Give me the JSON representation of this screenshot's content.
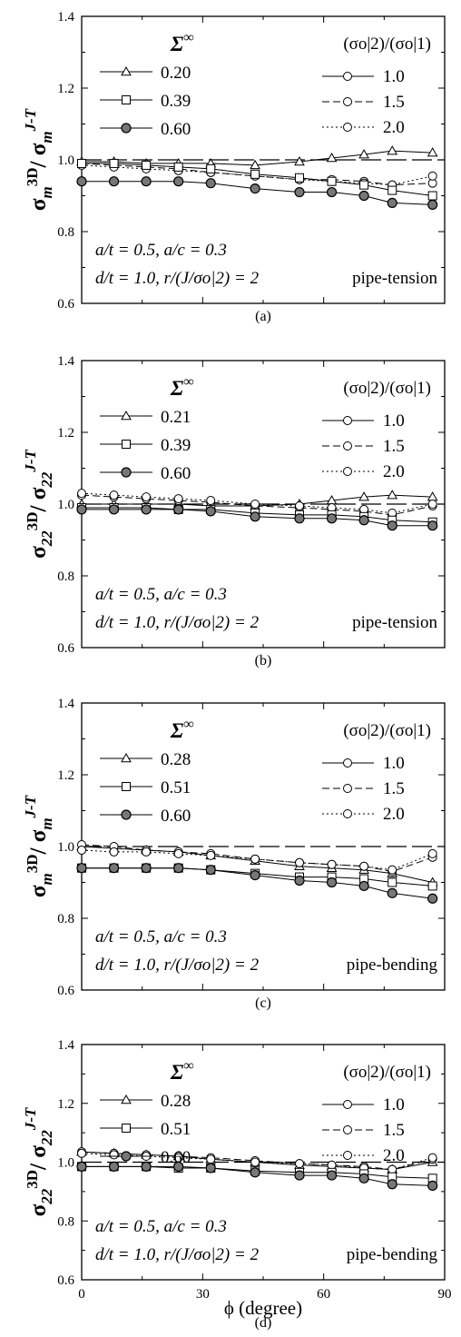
{
  "chart_data": [
    {
      "type": "line",
      "panel_label": "(a)",
      "y_label": {
        "base": "σ",
        "sub": "m",
        "sup_left": "3D",
        "sep": "/ ",
        "base2": "σ",
        "sub2": "m",
        "sup2": "J-T"
      },
      "xlabel": "",
      "xlim": [
        0,
        90
      ],
      "ylim": [
        0.6,
        1.4
      ],
      "x_ticks": [
        "0",
        "30",
        "60",
        "90"
      ],
      "y_ticks": [
        "0.6",
        "0.8",
        "1.0",
        "1.2",
        "1.4"
      ],
      "sigma_header": {
        "main": "Σ",
        "sup": "∞"
      },
      "ratio_header": "(σo|2)/(σo|1)",
      "sigma_levels": [
        {
          "name": "0.20",
          "marker": "triangle"
        },
        {
          "name": "0.39",
          "marker": "square"
        },
        {
          "name": "0.60",
          "marker": "filled-circle"
        }
      ],
      "ratio_styles": [
        {
          "name": "1.0",
          "style": "solid"
        },
        {
          "name": "1.5",
          "style": "dashed"
        },
        {
          "name": "2.0",
          "style": "dotted"
        }
      ],
      "param_line1": "a/t = 0.5, a/c = 0.3",
      "param_line2": "d/t = 1.0, r/(J/σo|2) = 2",
      "load_case": "pipe-tension",
      "x": [
        0,
        8,
        16,
        24,
        32,
        43,
        54,
        62,
        70,
        77,
        87
      ],
      "series": [
        {
          "group": "0.20",
          "ratio": "1.0",
          "values": [
            0.995,
            0.995,
            0.99,
            0.99,
            0.99,
            0.985,
            0.995,
            1.005,
            1.015,
            1.025,
            1.02
          ]
        },
        {
          "group": "0.20",
          "ratio": "1.5",
          "values": [
            0.99,
            0.985,
            0.98,
            0.975,
            0.965,
            0.955,
            0.945,
            0.945,
            0.94,
            0.93,
            0.935
          ]
        },
        {
          "group": "0.20",
          "ratio": "2.0",
          "values": [
            0.985,
            0.98,
            0.975,
            0.97,
            0.965,
            0.955,
            0.945,
            0.94,
            0.935,
            0.93,
            0.955
          ]
        },
        {
          "group": "0.39",
          "ratio": "1.0",
          "values": [
            0.99,
            0.99,
            0.985,
            0.98,
            0.975,
            0.96,
            0.95,
            0.94,
            0.93,
            0.915,
            0.9
          ]
        },
        {
          "group": "0.60",
          "ratio": "1.0",
          "values": [
            0.94,
            0.94,
            0.94,
            0.94,
            0.935,
            0.92,
            0.91,
            0.91,
            0.9,
            0.88,
            0.875
          ]
        }
      ],
      "ref_line": 1.0
    },
    {
      "type": "line",
      "panel_label": "(b)",
      "y_label": {
        "base": "σ",
        "sub": "22",
        "sup_left": "3D",
        "sep": "/ ",
        "base2": "σ",
        "sub2": "22",
        "sup2": "J-T"
      },
      "xlabel": "",
      "xlim": [
        0,
        90
      ],
      "ylim": [
        0.6,
        1.4
      ],
      "x_ticks": [
        "0",
        "30",
        "60",
        "90"
      ],
      "y_ticks": [
        "0.6",
        "0.8",
        "1.0",
        "1.2",
        "1.4"
      ],
      "sigma_header": {
        "main": "Σ",
        "sup": "∞"
      },
      "ratio_header": "(σo|2)/(σo|1)",
      "sigma_levels": [
        {
          "name": "0.21",
          "marker": "triangle"
        },
        {
          "name": "0.39",
          "marker": "square"
        },
        {
          "name": "0.60",
          "marker": "filled-circle"
        }
      ],
      "ratio_styles": [
        {
          "name": "1.0",
          "style": "solid"
        },
        {
          "name": "1.5",
          "style": "dashed"
        },
        {
          "name": "2.0",
          "style": "dotted"
        }
      ],
      "param_line1": "a/t = 0.5, a/c = 0.3",
      "param_line2": "d/t = 1.0, r/(J/σo|2) = 2",
      "load_case": "pipe-tension",
      "x": [
        0,
        8,
        16,
        24,
        32,
        43,
        54,
        62,
        70,
        77,
        87
      ],
      "series": [
        {
          "group": "0.21",
          "ratio": "1.0",
          "values": [
            1.0,
            1.0,
            1.0,
            1.0,
            0.995,
            0.995,
            1.0,
            1.01,
            1.02,
            1.025,
            1.02
          ]
        },
        {
          "group": "0.21",
          "ratio": "1.5",
          "values": [
            1.025,
            1.02,
            1.015,
            1.01,
            1.005,
            0.995,
            0.99,
            0.985,
            0.98,
            0.97,
            0.995
          ]
        },
        {
          "group": "0.21",
          "ratio": "2.0",
          "values": [
            1.03,
            1.025,
            1.02,
            1.015,
            1.01,
            1.0,
            0.995,
            0.99,
            0.985,
            0.975,
            1.0
          ]
        },
        {
          "group": "0.39",
          "ratio": "1.0",
          "values": [
            0.99,
            0.99,
            0.99,
            0.985,
            0.985,
            0.975,
            0.97,
            0.97,
            0.965,
            0.955,
            0.95
          ]
        },
        {
          "group": "0.60",
          "ratio": "1.0",
          "values": [
            0.985,
            0.985,
            0.985,
            0.985,
            0.98,
            0.965,
            0.96,
            0.96,
            0.955,
            0.94,
            0.94
          ]
        }
      ],
      "ref_line": 1.0
    },
    {
      "type": "line",
      "panel_label": "(c)",
      "y_label": {
        "base": "σ",
        "sub": "m",
        "sup_left": "3D",
        "sep": "/ ",
        "base2": "σ",
        "sub2": "m",
        "sup2": "J-T"
      },
      "xlabel": "",
      "xlim": [
        0,
        90
      ],
      "ylim": [
        0.6,
        1.4
      ],
      "x_ticks": [
        "0",
        "30",
        "60",
        "90"
      ],
      "y_ticks": [
        "0.6",
        "0.8",
        "1.0",
        "1.2",
        "1.4"
      ],
      "sigma_header": {
        "main": "Σ",
        "sup": "∞"
      },
      "ratio_header": "(σo|2)/(σo|1)",
      "sigma_levels": [
        {
          "name": "0.28",
          "marker": "triangle"
        },
        {
          "name": "0.51",
          "marker": "square"
        },
        {
          "name": "0.60",
          "marker": "filled-circle"
        }
      ],
      "ratio_styles": [
        {
          "name": "1.0",
          "style": "solid"
        },
        {
          "name": "1.5",
          "style": "dashed"
        },
        {
          "name": "2.0",
          "style": "dotted"
        }
      ],
      "param_line1": "a/t = 0.5, a/c = 0.3",
      "param_line2": "d/t = 1.0, r/(J/σo|2) = 2",
      "load_case": "pipe-bending",
      "x": [
        0,
        8,
        16,
        24,
        32,
        43,
        54,
        62,
        70,
        77,
        87
      ],
      "series": [
        {
          "group": "0.28",
          "ratio": "1.0",
          "values": [
            1.0,
            0.995,
            0.99,
            0.985,
            0.975,
            0.96,
            0.945,
            0.94,
            0.935,
            0.925,
            0.9
          ]
        },
        {
          "group": "0.28",
          "ratio": "1.5",
          "values": [
            1.005,
            1.0,
            0.99,
            0.985,
            0.98,
            0.965,
            0.955,
            0.95,
            0.945,
            0.93,
            0.97
          ]
        },
        {
          "group": "0.28",
          "ratio": "2.0",
          "values": [
            0.99,
            0.985,
            0.985,
            0.98,
            0.975,
            0.965,
            0.955,
            0.95,
            0.945,
            0.935,
            0.98
          ]
        },
        {
          "group": "0.51",
          "ratio": "1.0",
          "values": [
            0.94,
            0.94,
            0.94,
            0.94,
            0.935,
            0.925,
            0.915,
            0.915,
            0.91,
            0.9,
            0.89
          ]
        },
        {
          "group": "0.60",
          "ratio": "1.0",
          "values": [
            0.94,
            0.94,
            0.94,
            0.94,
            0.935,
            0.92,
            0.905,
            0.9,
            0.89,
            0.87,
            0.855
          ]
        }
      ],
      "ref_line": 1.0
    },
    {
      "type": "line",
      "panel_label": "(d)",
      "y_label": {
        "base": "σ",
        "sub": "22",
        "sup_left": "3D",
        "sep": "/ ",
        "base2": "σ",
        "sub2": "22",
        "sup2": "J-T"
      },
      "xlabel": "ϕ (degree)",
      "xlim": [
        0,
        90
      ],
      "ylim": [
        0.6,
        1.4
      ],
      "x_ticks": [
        "0",
        "30",
        "60",
        "90"
      ],
      "y_ticks": [
        "0.6",
        "0.8",
        "1.0",
        "1.2",
        "1.4"
      ],
      "sigma_header": {
        "main": "Σ",
        "sup": "∞"
      },
      "ratio_header": "(σo|2)/(σo|1)",
      "sigma_levels": [
        {
          "name": "0.28",
          "marker": "triangle"
        },
        {
          "name": "0.51",
          "marker": "square"
        },
        {
          "name": "0.60",
          "marker": "filled-circle"
        }
      ],
      "ratio_styles": [
        {
          "name": "1.0",
          "style": "solid"
        },
        {
          "name": "1.5",
          "style": "dashed"
        },
        {
          "name": "2.0",
          "style": "dotted"
        }
      ],
      "param_line1": "a/t = 0.5, a/c = 0.3",
      "param_line2": "d/t = 1.0, r/(J/σo|2) = 2",
      "load_case": "pipe-bending",
      "x": [
        0,
        8,
        16,
        24,
        32,
        43,
        54,
        62,
        70,
        77,
        87
      ],
      "series": [
        {
          "group": "0.28",
          "ratio": "1.0",
          "values": [
            1.035,
            1.03,
            1.025,
            1.02,
            1.01,
            1.0,
            0.99,
            0.985,
            0.98,
            0.975,
            1.0
          ]
        },
        {
          "group": "0.28",
          "ratio": "1.5",
          "values": [
            1.035,
            1.03,
            1.025,
            1.02,
            1.015,
            1.005,
            0.995,
            0.99,
            0.985,
            0.975,
            1.01
          ]
        },
        {
          "group": "0.28",
          "ratio": "2.0",
          "values": [
            1.03,
            1.025,
            1.02,
            1.015,
            1.01,
            1.0,
            0.995,
            0.99,
            0.98,
            0.975,
            1.015
          ]
        },
        {
          "group": "0.51",
          "ratio": "1.0",
          "values": [
            0.985,
            0.985,
            0.985,
            0.98,
            0.98,
            0.97,
            0.965,
            0.965,
            0.96,
            0.95,
            0.945
          ]
        },
        {
          "group": "0.60",
          "ratio": "1.0",
          "values": [
            0.985,
            0.985,
            0.985,
            0.985,
            0.98,
            0.965,
            0.955,
            0.955,
            0.945,
            0.925,
            0.92
          ]
        }
      ],
      "ref_line": 1.0
    }
  ]
}
